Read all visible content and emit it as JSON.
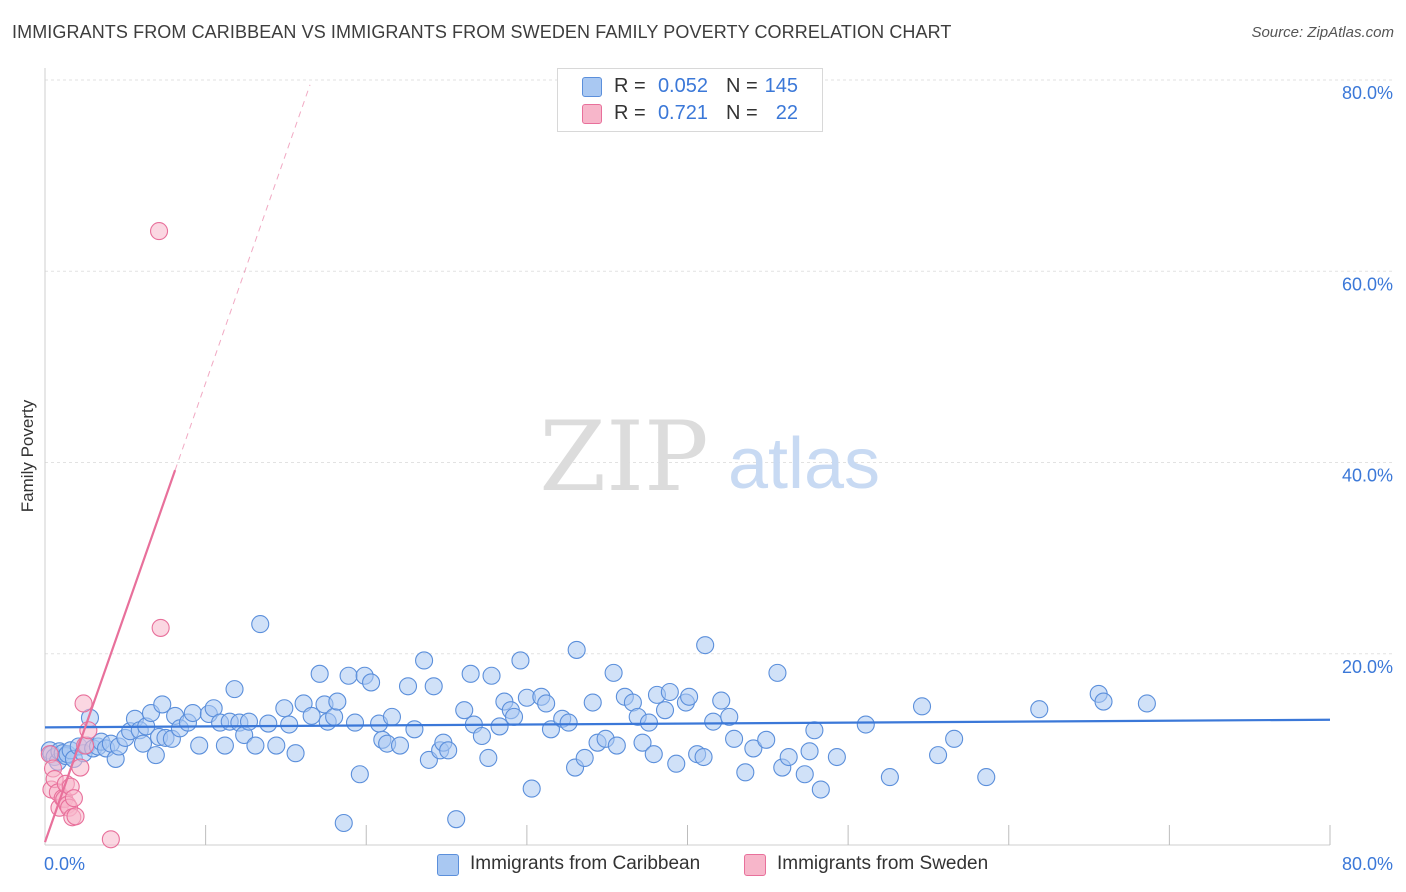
{
  "title": "IMMIGRANTS FROM CARIBBEAN VS IMMIGRANTS FROM SWEDEN FAMILY POVERTY CORRELATION CHART",
  "source": "Source: ZipAtlas.com",
  "watermark": {
    "zip": "ZIP",
    "atlas": "atlas"
  },
  "legend_top": {
    "rows": [
      {
        "r_label": "R =",
        "r_value": "0.052",
        "n_label": "N =",
        "n_value": "145",
        "color": "#a9c8f2"
      },
      {
        "r_label": "R =",
        "r_value": "0.721",
        "n_label": "N =",
        "n_value": "22",
        "color": "#f7b6ca"
      }
    ]
  },
  "legend_bottom": {
    "items": [
      {
        "label": "Immigrants from Caribbean",
        "color": "#a9c8f2"
      },
      {
        "label": "Immigrants from Sweden",
        "color": "#f7b6ca"
      }
    ]
  },
  "chart_data": {
    "type": "scatter",
    "title": "IMMIGRANTS FROM CARIBBEAN VS IMMIGRANTS FROM SWEDEN FAMILY POVERTY CORRELATION CHART",
    "xlabel": "",
    "ylabel": "Family Poverty",
    "xlim": [
      0,
      80
    ],
    "ylim": [
      0,
      80
    ],
    "x_tick_labels": [
      "0.0%",
      "80.0%"
    ],
    "y_tick_labels": [
      "20.0%",
      "40.0%",
      "60.0%",
      "80.0%"
    ],
    "y_ticks": [
      20,
      40,
      60,
      80
    ],
    "grid": true,
    "legend_position": "bottom",
    "colors": {
      "caribbean": "#3b78d8",
      "sweden": "#e8709b",
      "tick_label": "#3b78d8"
    },
    "series": [
      {
        "name": "Immigrants from Caribbean",
        "color": "#a9c8f2",
        "edge": "#5b8fdb",
        "R": 0.052,
        "N": 145,
        "trend": {
          "x": [
            0,
            80
          ],
          "y": [
            12.3,
            13.1
          ]
        },
        "points": [
          [
            0.3,
            9.9
          ],
          [
            0.4,
            9.5
          ],
          [
            0.6,
            9.2
          ],
          [
            0.8,
            8.7
          ],
          [
            0.9,
            9.8
          ],
          [
            1.1,
            9.6
          ],
          [
            1.3,
            9.3
          ],
          [
            1.4,
            9.5
          ],
          [
            1.6,
            9.9
          ],
          [
            1.8,
            9.0
          ],
          [
            2.1,
            10.3
          ],
          [
            2.4,
            9.6
          ],
          [
            2.6,
            10.4
          ],
          [
            2.8,
            13.3
          ],
          [
            3.0,
            10.1
          ],
          [
            3.3,
            10.3
          ],
          [
            3.5,
            10.8
          ],
          [
            3.8,
            10.1
          ],
          [
            4.1,
            10.6
          ],
          [
            4.4,
            9.0
          ],
          [
            4.6,
            10.3
          ],
          [
            5.0,
            11.2
          ],
          [
            5.3,
            11.9
          ],
          [
            5.6,
            13.2
          ],
          [
            5.9,
            12.0
          ],
          [
            6.1,
            10.6
          ],
          [
            6.3,
            12.4
          ],
          [
            6.6,
            13.8
          ],
          [
            6.9,
            9.4
          ],
          [
            7.1,
            11.3
          ],
          [
            7.3,
            14.7
          ],
          [
            7.5,
            11.2
          ],
          [
            7.9,
            11.1
          ],
          [
            8.1,
            13.5
          ],
          [
            8.4,
            12.2
          ],
          [
            8.9,
            12.8
          ],
          [
            9.2,
            13.8
          ],
          [
            9.6,
            10.4
          ],
          [
            10.2,
            13.7
          ],
          [
            10.5,
            14.3
          ],
          [
            10.9,
            12.8
          ],
          [
            11.2,
            10.4
          ],
          [
            11.5,
            12.9
          ],
          [
            11.8,
            16.3
          ],
          [
            12.1,
            12.8
          ],
          [
            12.4,
            11.5
          ],
          [
            12.7,
            12.9
          ],
          [
            13.1,
            10.4
          ],
          [
            13.4,
            23.1
          ],
          [
            13.9,
            12.7
          ],
          [
            14.4,
            10.4
          ],
          [
            14.9,
            14.3
          ],
          [
            15.2,
            12.6
          ],
          [
            15.6,
            9.6
          ],
          [
            16.1,
            14.8
          ],
          [
            16.6,
            13.5
          ],
          [
            17.1,
            17.9
          ],
          [
            17.4,
            14.7
          ],
          [
            17.6,
            12.9
          ],
          [
            18.0,
            13.4
          ],
          [
            18.2,
            15.0
          ],
          [
            18.6,
            2.3
          ],
          [
            18.9,
            17.7
          ],
          [
            19.3,
            12.8
          ],
          [
            19.6,
            7.4
          ],
          [
            19.9,
            17.7
          ],
          [
            20.3,
            17.0
          ],
          [
            20.8,
            12.7
          ],
          [
            21.0,
            11.0
          ],
          [
            21.3,
            10.6
          ],
          [
            21.6,
            13.4
          ],
          [
            22.1,
            10.4
          ],
          [
            22.6,
            16.6
          ],
          [
            23.0,
            12.1
          ],
          [
            23.6,
            19.3
          ],
          [
            23.9,
            8.9
          ],
          [
            24.2,
            16.6
          ],
          [
            24.6,
            9.9
          ],
          [
            24.8,
            10.7
          ],
          [
            25.1,
            9.9
          ],
          [
            25.6,
            2.7
          ],
          [
            26.1,
            14.1
          ],
          [
            26.5,
            17.9
          ],
          [
            26.7,
            12.6
          ],
          [
            27.2,
            11.4
          ],
          [
            27.6,
            9.1
          ],
          [
            27.8,
            17.7
          ],
          [
            28.3,
            12.4
          ],
          [
            28.6,
            15.0
          ],
          [
            29.0,
            14.1
          ],
          [
            29.2,
            13.4
          ],
          [
            29.6,
            19.3
          ],
          [
            30.0,
            15.4
          ],
          [
            30.3,
            5.9
          ],
          [
            30.9,
            15.5
          ],
          [
            31.2,
            14.8
          ],
          [
            31.5,
            12.1
          ],
          [
            32.2,
            13.2
          ],
          [
            32.6,
            12.8
          ],
          [
            33.0,
            8.1
          ],
          [
            33.1,
            20.4
          ],
          [
            33.6,
            9.1
          ],
          [
            34.1,
            14.9
          ],
          [
            34.4,
            10.7
          ],
          [
            34.9,
            11.1
          ],
          [
            35.4,
            18.0
          ],
          [
            35.6,
            10.4
          ],
          [
            36.1,
            15.5
          ],
          [
            36.6,
            14.9
          ],
          [
            36.9,
            13.4
          ],
          [
            37.2,
            10.7
          ],
          [
            37.6,
            12.8
          ],
          [
            37.9,
            9.5
          ],
          [
            38.1,
            15.7
          ],
          [
            38.6,
            14.1
          ],
          [
            38.9,
            16.0
          ],
          [
            39.3,
            8.5
          ],
          [
            39.9,
            14.9
          ],
          [
            40.1,
            15.5
          ],
          [
            40.6,
            9.5
          ],
          [
            41.0,
            9.2
          ],
          [
            41.1,
            20.9
          ],
          [
            41.6,
            12.9
          ],
          [
            42.1,
            15.1
          ],
          [
            42.6,
            13.4
          ],
          [
            42.9,
            11.1
          ],
          [
            43.6,
            7.6
          ],
          [
            44.1,
            10.1
          ],
          [
            44.9,
            11.0
          ],
          [
            45.6,
            18.0
          ],
          [
            45.9,
            8.1
          ],
          [
            46.3,
            9.2
          ],
          [
            47.3,
            7.4
          ],
          [
            47.6,
            9.8
          ],
          [
            47.9,
            12.0
          ],
          [
            48.3,
            5.8
          ],
          [
            49.3,
            9.2
          ],
          [
            51.1,
            12.6
          ],
          [
            52.6,
            7.1
          ],
          [
            54.6,
            14.5
          ],
          [
            55.6,
            9.4
          ],
          [
            56.6,
            11.1
          ],
          [
            58.6,
            7.1
          ],
          [
            61.9,
            14.2
          ],
          [
            65.6,
            15.8
          ],
          [
            65.9,
            15.0
          ],
          [
            68.6,
            14.8
          ]
        ]
      },
      {
        "name": "Immigrants from Sweden",
        "color": "#f7b6ca",
        "edge": "#e8709b",
        "R": 0.721,
        "N": 22,
        "trend": {
          "x": [
            0,
            8.1
          ],
          "y": [
            0.3,
            39.2
          ],
          "dashed_x": [
            8.1,
            16.5
          ],
          "dashed_y": [
            39.2,
            79.5
          ]
        },
        "points": [
          [
            0.3,
            9.5
          ],
          [
            0.4,
            5.8
          ],
          [
            0.5,
            8.0
          ],
          [
            0.6,
            6.9
          ],
          [
            0.8,
            5.5
          ],
          [
            0.9,
            3.9
          ],
          [
            1.1,
            4.9
          ],
          [
            1.2,
            4.8
          ],
          [
            1.3,
            6.4
          ],
          [
            1.4,
            4.2
          ],
          [
            1.5,
            3.9
          ],
          [
            1.6,
            6.1
          ],
          [
            1.7,
            2.9
          ],
          [
            1.8,
            4.9
          ],
          [
            1.9,
            3.0
          ],
          [
            2.2,
            8.1
          ],
          [
            2.4,
            14.8
          ],
          [
            2.5,
            10.4
          ],
          [
            2.7,
            12.0
          ],
          [
            4.1,
            0.6
          ],
          [
            7.2,
            22.7
          ],
          [
            7.1,
            64.2
          ]
        ]
      }
    ]
  }
}
